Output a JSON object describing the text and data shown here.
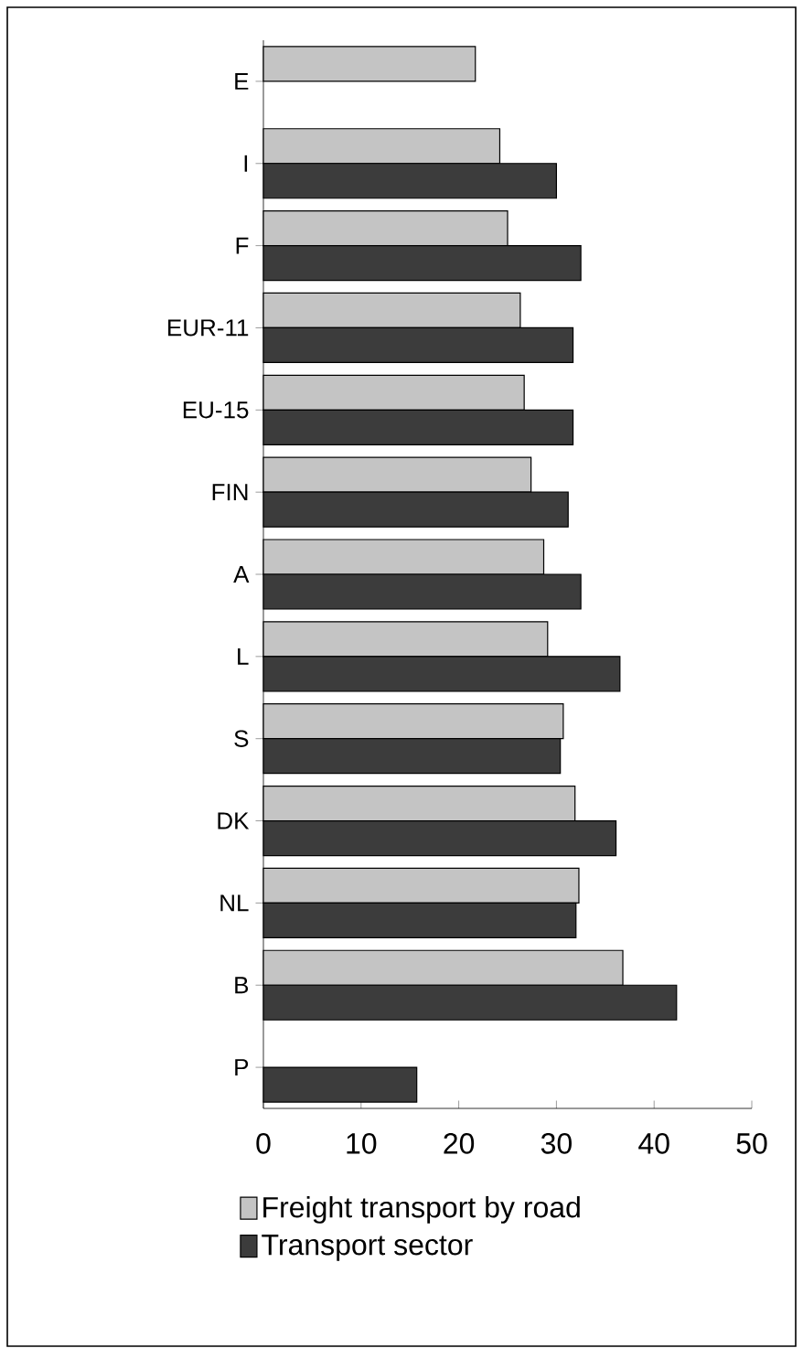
{
  "chart_data": {
    "type": "bar",
    "orientation": "horizontal",
    "categories": [
      "E",
      "I",
      "F",
      "EUR-11",
      "EU-15",
      "FIN",
      "A",
      "L",
      "S",
      "DK",
      "NL",
      "B",
      "P"
    ],
    "series": [
      {
        "name": "Freight transport by road",
        "color": "#c4c4c4",
        "values": [
          21.7,
          24.2,
          25.0,
          26.3,
          26.7,
          27.4,
          28.7,
          29.1,
          30.7,
          31.9,
          32.3,
          36.8,
          null
        ]
      },
      {
        "name": "Transport sector",
        "color": "#3c3c3c",
        "values": [
          null,
          30.0,
          32.5,
          31.7,
          31.7,
          31.2,
          32.5,
          36.5,
          30.4,
          36.1,
          32.0,
          42.3,
          15.7
        ]
      }
    ],
    "xlim": [
      0,
      50
    ],
    "xticks": [
      0,
      10,
      20,
      30,
      40,
      50
    ],
    "grid": false,
    "legend": "bottom"
  }
}
